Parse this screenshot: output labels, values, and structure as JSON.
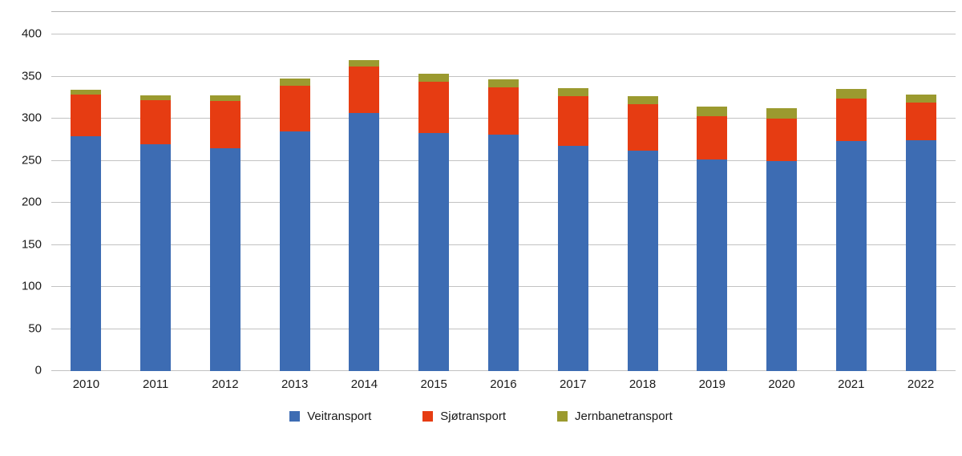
{
  "chart_data": {
    "type": "bar",
    "stacked": true,
    "title": "",
    "xlabel": "",
    "ylabel": "",
    "categories": [
      "2010",
      "2011",
      "2012",
      "2013",
      "2014",
      "2015",
      "2016",
      "2017",
      "2018",
      "2019",
      "2020",
      "2021",
      "2022"
    ],
    "series": [
      {
        "name": "Veitransport",
        "color": "#3d6cb3",
        "values": [
          279,
          270,
          265,
          285,
          307,
          283,
          281,
          268,
          262,
          251,
          250,
          273,
          274
        ]
      },
      {
        "name": "Sjøtransport",
        "color": "#e63c12",
        "values": [
          50,
          52,
          56,
          54,
          55,
          61,
          56,
          59,
          55,
          52,
          50,
          51,
          45
        ]
      },
      {
        "name": "Jernbanetransport",
        "color": "#9b9a2f",
        "values": [
          5,
          6,
          7,
          9,
          8,
          9,
          10,
          9,
          10,
          11,
          12,
          11,
          10
        ]
      }
    ],
    "ylim": [
      0,
      400
    ],
    "ytick_step": 50,
    "yticks": [
      "0",
      "50",
      "100",
      "150",
      "200",
      "250",
      "300",
      "350",
      "400"
    ],
    "grid": true,
    "gridline_color": "#c2c2c2",
    "legend_position": "bottom"
  }
}
